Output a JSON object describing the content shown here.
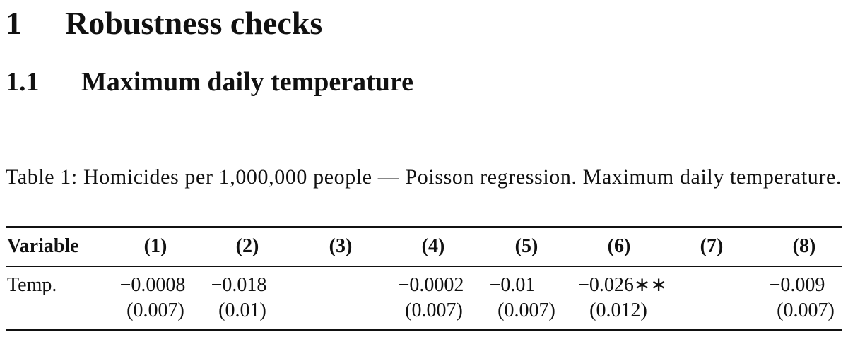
{
  "section": {
    "number": "1",
    "title": "Robustness checks"
  },
  "subsection": {
    "number": "1.1",
    "title": "Maximum daily temperature"
  },
  "caption": {
    "label": "Table 1:",
    "text": "Homicides per 1,000,000 people — Poisson regression. Maximum daily temperature."
  },
  "table": {
    "header": [
      "Variable",
      "(1)",
      "(2)",
      "(3)",
      "(4)",
      "(5)",
      "(6)",
      "(7)",
      "(8)"
    ],
    "rows": [
      [
        "Temp.",
        "−0.0008",
        "−0.018",
        null,
        "−0.0002",
        "−0.01",
        "−0.026∗∗",
        null,
        "−0.009"
      ],
      [
        null,
        "(0.007)",
        "(0.01)",
        null,
        "(0.007)",
        "(0.007)",
        "(0.012)",
        null,
        "(0.007)"
      ]
    ]
  }
}
